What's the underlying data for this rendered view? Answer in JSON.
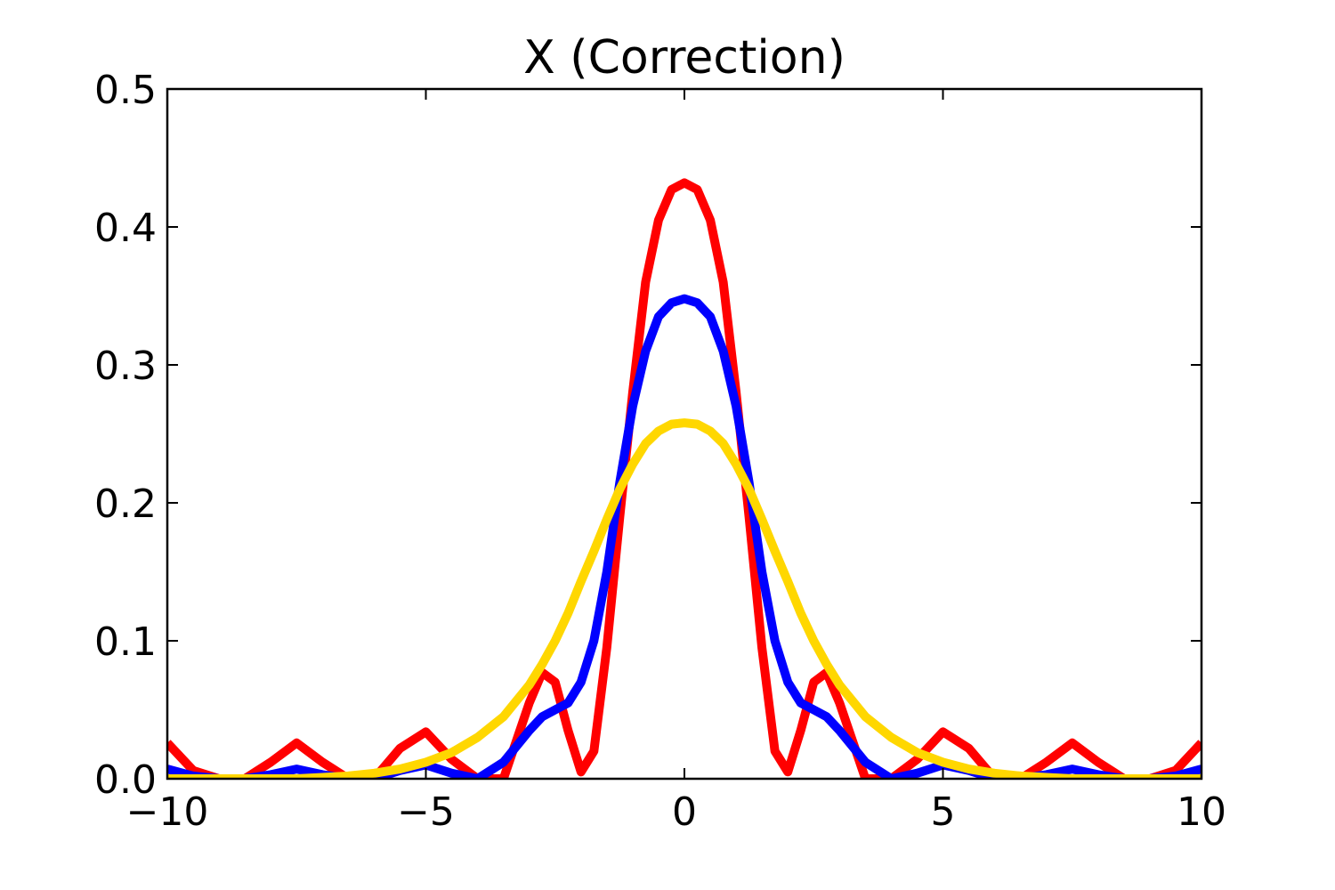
{
  "chart_data": {
    "type": "line",
    "title": "X (Correction)",
    "xlabel": "",
    "ylabel": "",
    "xlim": [
      -10,
      10
    ],
    "ylim": [
      0,
      0.5
    ],
    "x_ticks": [
      -10,
      -5,
      0,
      5,
      10
    ],
    "x_tick_labels": [
      "−10",
      "−5",
      "0",
      "5",
      "10"
    ],
    "y_ticks": [
      0,
      0.1,
      0.2,
      0.3,
      0.4,
      0.5
    ],
    "y_tick_labels": [
      "0.0",
      "0.1",
      "0.2",
      "0.3",
      "0.4",
      "0.5"
    ],
    "grid": false,
    "x": [
      -10,
      -9.5,
      -9,
      -8.5,
      -8,
      -7.5,
      -7,
      -6.5,
      -6,
      -5.5,
      -5,
      -4.5,
      -4,
      -3.5,
      -3,
      -2.75,
      -2.5,
      -2.25,
      -2,
      -1.75,
      -1.5,
      -1.25,
      -1,
      -0.75,
      -0.5,
      -0.25,
      0,
      0.25,
      0.5,
      0.75,
      1,
      1.25,
      1.5,
      1.75,
      2,
      2.25,
      2.5,
      2.75,
      3,
      3.5,
      4,
      4.5,
      5,
      5.5,
      6,
      6.5,
      7,
      7.5,
      8,
      8.5,
      9,
      9.5,
      10
    ],
    "series": [
      {
        "color": "#ff0000",
        "values": [
          0.026,
          0.006,
          0,
          0,
          0.012,
          0.026,
          0.012,
          0,
          0,
          0.022,
          0.034,
          0.014,
          0,
          0,
          0.055,
          0.077,
          0.07,
          0.035,
          0.005,
          0.02,
          0.095,
          0.19,
          0.28,
          0.36,
          0.405,
          0.427,
          0.432,
          0.427,
          0.405,
          0.36,
          0.28,
          0.19,
          0.095,
          0.02,
          0.005,
          0.035,
          0.07,
          0.077,
          0.055,
          0,
          0,
          0.014,
          0.034,
          0.022,
          0,
          0,
          0.012,
          0.026,
          0.012,
          0,
          0,
          0.006,
          0.026
        ]
      },
      {
        "color": "#0000ff",
        "values": [
          0.007,
          0.002,
          0,
          0,
          0.003,
          0.007,
          0.003,
          0,
          0,
          0.006,
          0.01,
          0.004,
          0,
          0.012,
          0.035,
          0.045,
          0.05,
          0.055,
          0.07,
          0.1,
          0.15,
          0.215,
          0.27,
          0.31,
          0.335,
          0.345,
          0.348,
          0.345,
          0.335,
          0.31,
          0.27,
          0.215,
          0.15,
          0.1,
          0.07,
          0.055,
          0.05,
          0.045,
          0.035,
          0.012,
          0,
          0.004,
          0.01,
          0.006,
          0,
          0,
          0.003,
          0.007,
          0.003,
          0,
          0,
          0.002,
          0.007
        ]
      },
      {
        "color": "#ffd700",
        "values": [
          0,
          0,
          0,
          0,
          0,
          0,
          0.001,
          0.002,
          0.004,
          0.007,
          0.012,
          0.019,
          0.03,
          0.045,
          0.068,
          0.083,
          0.1,
          0.12,
          0.143,
          0.165,
          0.188,
          0.21,
          0.228,
          0.243,
          0.252,
          0.257,
          0.258,
          0.257,
          0.252,
          0.243,
          0.228,
          0.21,
          0.188,
          0.165,
          0.143,
          0.12,
          0.1,
          0.083,
          0.068,
          0.045,
          0.03,
          0.019,
          0.012,
          0.007,
          0.004,
          0.002,
          0.001,
          0,
          0,
          0,
          0,
          0,
          0
        ]
      }
    ]
  }
}
